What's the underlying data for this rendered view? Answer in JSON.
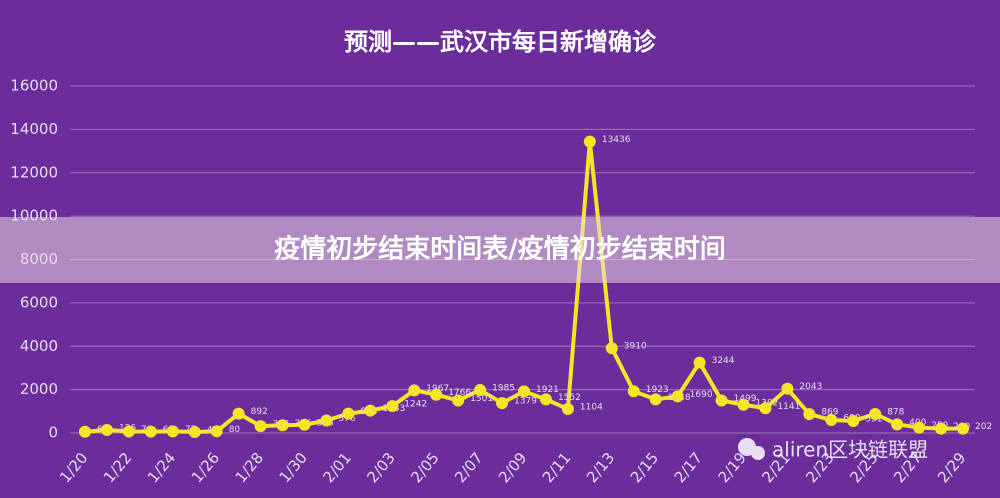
{
  "chart_data": {
    "type": "line",
    "title": "预测——武汉市每日新增确诊",
    "banner": "疫情初步结束时间表/疫情初步结束时间",
    "watermark": "aliren区块链联盟",
    "categories": [
      "1/20",
      null,
      "1/22",
      null,
      "1/24",
      null,
      "1/26",
      null,
      "1/28",
      null,
      "1/30",
      null,
      "2/01",
      null,
      "2/03",
      null,
      "2/05",
      null,
      "2/07",
      null,
      "2/09",
      null,
      "2/11",
      null,
      "2/13",
      null,
      "2/15",
      null,
      "2/17",
      null,
      "2/19",
      null,
      "2/21",
      null,
      "2/23",
      null,
      "2/25",
      null,
      "2/27",
      null,
      "2/29"
    ],
    "values": [
      60,
      136,
      70,
      62,
      77,
      46,
      80,
      892,
      315,
      356,
      378,
      576,
      894,
      1033,
      1242,
      1967,
      1766,
      1501,
      1985,
      1379,
      1921,
      1552,
      1104,
      13436,
      3910,
      1923,
      1548,
      1690,
      3244,
      1499,
      1302,
      1141,
      2043,
      869,
      600,
      551,
      878,
      400,
      250,
      200,
      202
    ],
    "color": "#f4e526",
    "ylim": [
      0,
      16000
    ],
    "yticks": [
      0,
      2000,
      4000,
      6000,
      8000,
      10000,
      12000,
      14000,
      16000
    ],
    "grid": true
  }
}
